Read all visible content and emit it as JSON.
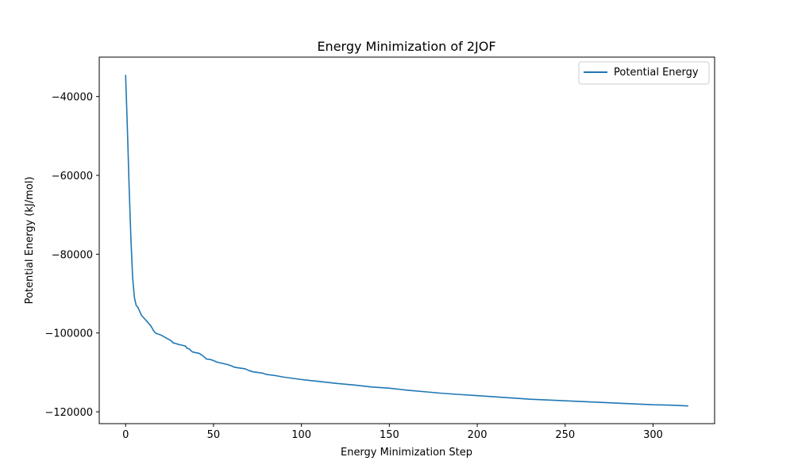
{
  "chart_data": {
    "type": "line",
    "title": "Energy Minimization of 2JOF",
    "xlabel": "Energy Minimization Step",
    "ylabel": "Potential Energy (kJ/mol)",
    "xlim": [
      -15,
      335
    ],
    "ylim": [
      -123000,
      -30000
    ],
    "xticks": [
      0,
      50,
      100,
      150,
      200,
      250,
      300
    ],
    "yticks": [
      -40000,
      -60000,
      -80000,
      -100000,
      -120000
    ],
    "xtick_labels": [
      "0",
      "50",
      "100",
      "150",
      "200",
      "250",
      "300"
    ],
    "ytick_labels": [
      "−40000",
      "−60000",
      "−80000",
      "−100000",
      "−120000"
    ],
    "legend_position": "top-right",
    "grid": false,
    "series": [
      {
        "name": "Potential Energy",
        "color": "#1f77b4",
        "x": [
          0,
          1,
          2,
          3,
          4,
          5,
          6,
          7,
          8,
          9,
          10,
          11,
          12,
          13,
          14,
          15,
          16,
          17,
          18,
          20,
          22,
          24,
          26,
          27,
          28,
          30,
          32,
          34,
          35,
          36,
          38,
          40,
          42,
          44,
          46,
          48,
          50,
          52,
          55,
          58,
          60,
          62,
          65,
          68,
          70,
          72,
          75,
          78,
          80,
          85,
          90,
          95,
          100,
          110,
          120,
          130,
          140,
          150,
          160,
          170,
          180,
          190,
          200,
          210,
          220,
          230,
          240,
          250,
          260,
          270,
          280,
          290,
          300,
          310,
          320
        ],
        "values": [
          -34500,
          -48000,
          -63000,
          -76000,
          -86000,
          -91000,
          -93000,
          -93500,
          -94500,
          -95500,
          -96000,
          -96500,
          -97000,
          -97500,
          -98000,
          -98700,
          -99500,
          -100000,
          -100200,
          -100500,
          -101000,
          -101500,
          -102000,
          -102500,
          -102600,
          -102900,
          -103100,
          -103300,
          -103900,
          -104000,
          -104800,
          -105000,
          -105200,
          -105800,
          -106600,
          -106700,
          -107000,
          -107400,
          -107700,
          -108000,
          -108300,
          -108700,
          -108900,
          -109100,
          -109500,
          -109800,
          -110000,
          -110200,
          -110500,
          -110800,
          -111200,
          -111500,
          -111800,
          -112300,
          -112800,
          -113200,
          -113700,
          -114000,
          -114500,
          -114900,
          -115300,
          -115600,
          -115900,
          -116200,
          -116500,
          -116800,
          -117000,
          -117200,
          -117400,
          -117600,
          -117800,
          -118000,
          -118200,
          -118300,
          -118500
        ]
      }
    ]
  }
}
